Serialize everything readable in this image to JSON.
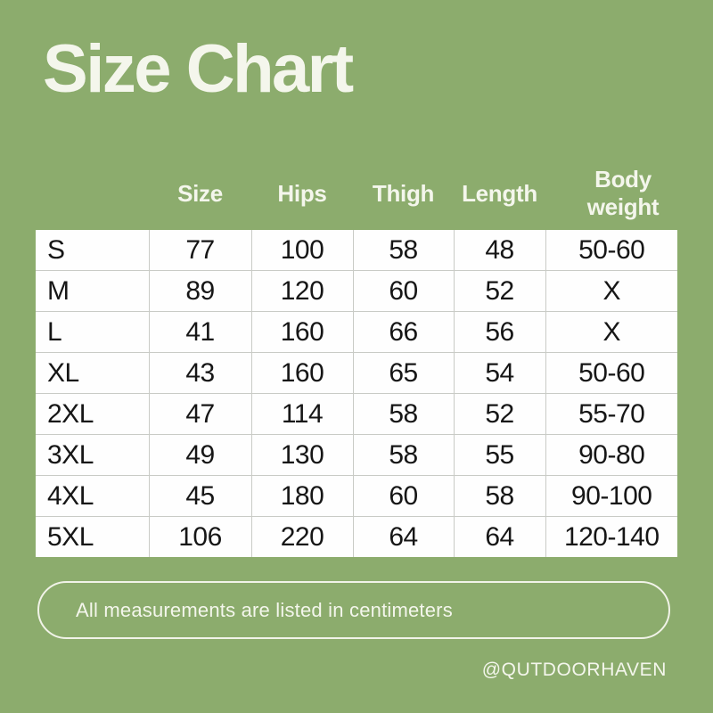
{
  "title": "Size Chart",
  "chart_data": {
    "type": "table",
    "title": "Size Chart",
    "columns": [
      "Size",
      "Hips",
      "Thigh",
      "Length",
      "Body weight"
    ],
    "row_labels": [
      "S",
      "M",
      "L",
      "XL",
      "2XL",
      "3XL",
      "4XL",
      "5XL"
    ],
    "rows": [
      [
        "77",
        "100",
        "58",
        "48",
        "50-60"
      ],
      [
        "89",
        "120",
        "60",
        "52",
        "X"
      ],
      [
        "41",
        "160",
        "66",
        "56",
        "X"
      ],
      [
        "43",
        "160",
        "65",
        "54",
        "50-60"
      ],
      [
        "47",
        "114",
        "58",
        "52",
        "55-70"
      ],
      [
        "49",
        "130",
        "58",
        "55",
        "90-80"
      ],
      [
        "45",
        "180",
        "60",
        "58",
        "90-100"
      ],
      [
        "106",
        "220",
        "64",
        "64",
        "120-140"
      ]
    ],
    "units_note": "All measurements are listed in centimeters"
  },
  "note": "All measurements are listed in centimeters",
  "footer": {
    "handle": "@QUTDOORHAVEN"
  },
  "colors": {
    "background": "#8cac6d",
    "light_text": "#f4f6ec",
    "cell_background": "#fefefe",
    "cell_border": "#c9cbc6",
    "cell_text": "#161616"
  }
}
